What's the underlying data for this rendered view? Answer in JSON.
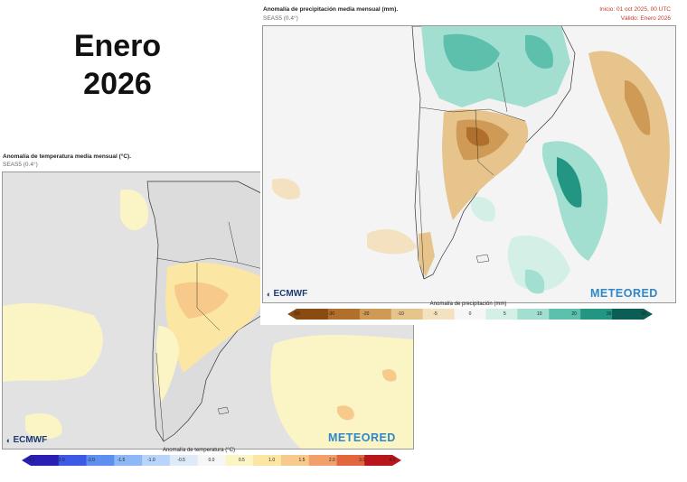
{
  "headline": {
    "line1": "Enero",
    "line2": "2026"
  },
  "temperature_panel": {
    "title": "Anomalía de temperatura media mensual (°C).",
    "subtitle": "SEAS5 (0.4°)",
    "provider_logo": "ECMWF",
    "brand_logo": "METEORED",
    "colorbar_title": "Anomalía de temperatura (°C)",
    "colorbar_labels": [
      "-4.0",
      "-3.0",
      "-2.0",
      "-1.5",
      "-1.0",
      "-0.5",
      "0.0",
      "0.5",
      "1.0",
      "1.5",
      "2.0",
      "3.0",
      "4.0"
    ],
    "colorbar_colors": [
      "#2a1fb5",
      "#3d5ae6",
      "#5d8ef0",
      "#8db8f5",
      "#b8d4f8",
      "#dfeaf8",
      "#f6f6f6",
      "#fbf5c6",
      "#fbe6a3",
      "#f7c98a",
      "#f2a06b",
      "#e3653f",
      "#b8161b"
    ]
  },
  "precipitation_panel": {
    "title": "Anomalía de precipitación media mensual (mm).",
    "subtitle": "SEAS5 (0.4°)",
    "init": "Inicio: 01 oct 2025, 00 UTC",
    "valid": "Válido: Enero 2026",
    "provider_logo": "ECMWF",
    "brand_logo": "METEORED",
    "colorbar_title": "Anomalía de precipitación (mm)",
    "colorbar_labels": [
      "-50",
      "-30",
      "-20",
      "-10",
      "-5",
      "0",
      "5",
      "10",
      "20",
      "30",
      "50"
    ],
    "colorbar_colors": [
      "#8a4b12",
      "#b06f2a",
      "#cf9a55",
      "#e6c48c",
      "#f3e1bf",
      "#f6f6f6",
      "#d3efe6",
      "#a2dfd0",
      "#5cc0ad",
      "#239683",
      "#0a5e55"
    ]
  }
}
